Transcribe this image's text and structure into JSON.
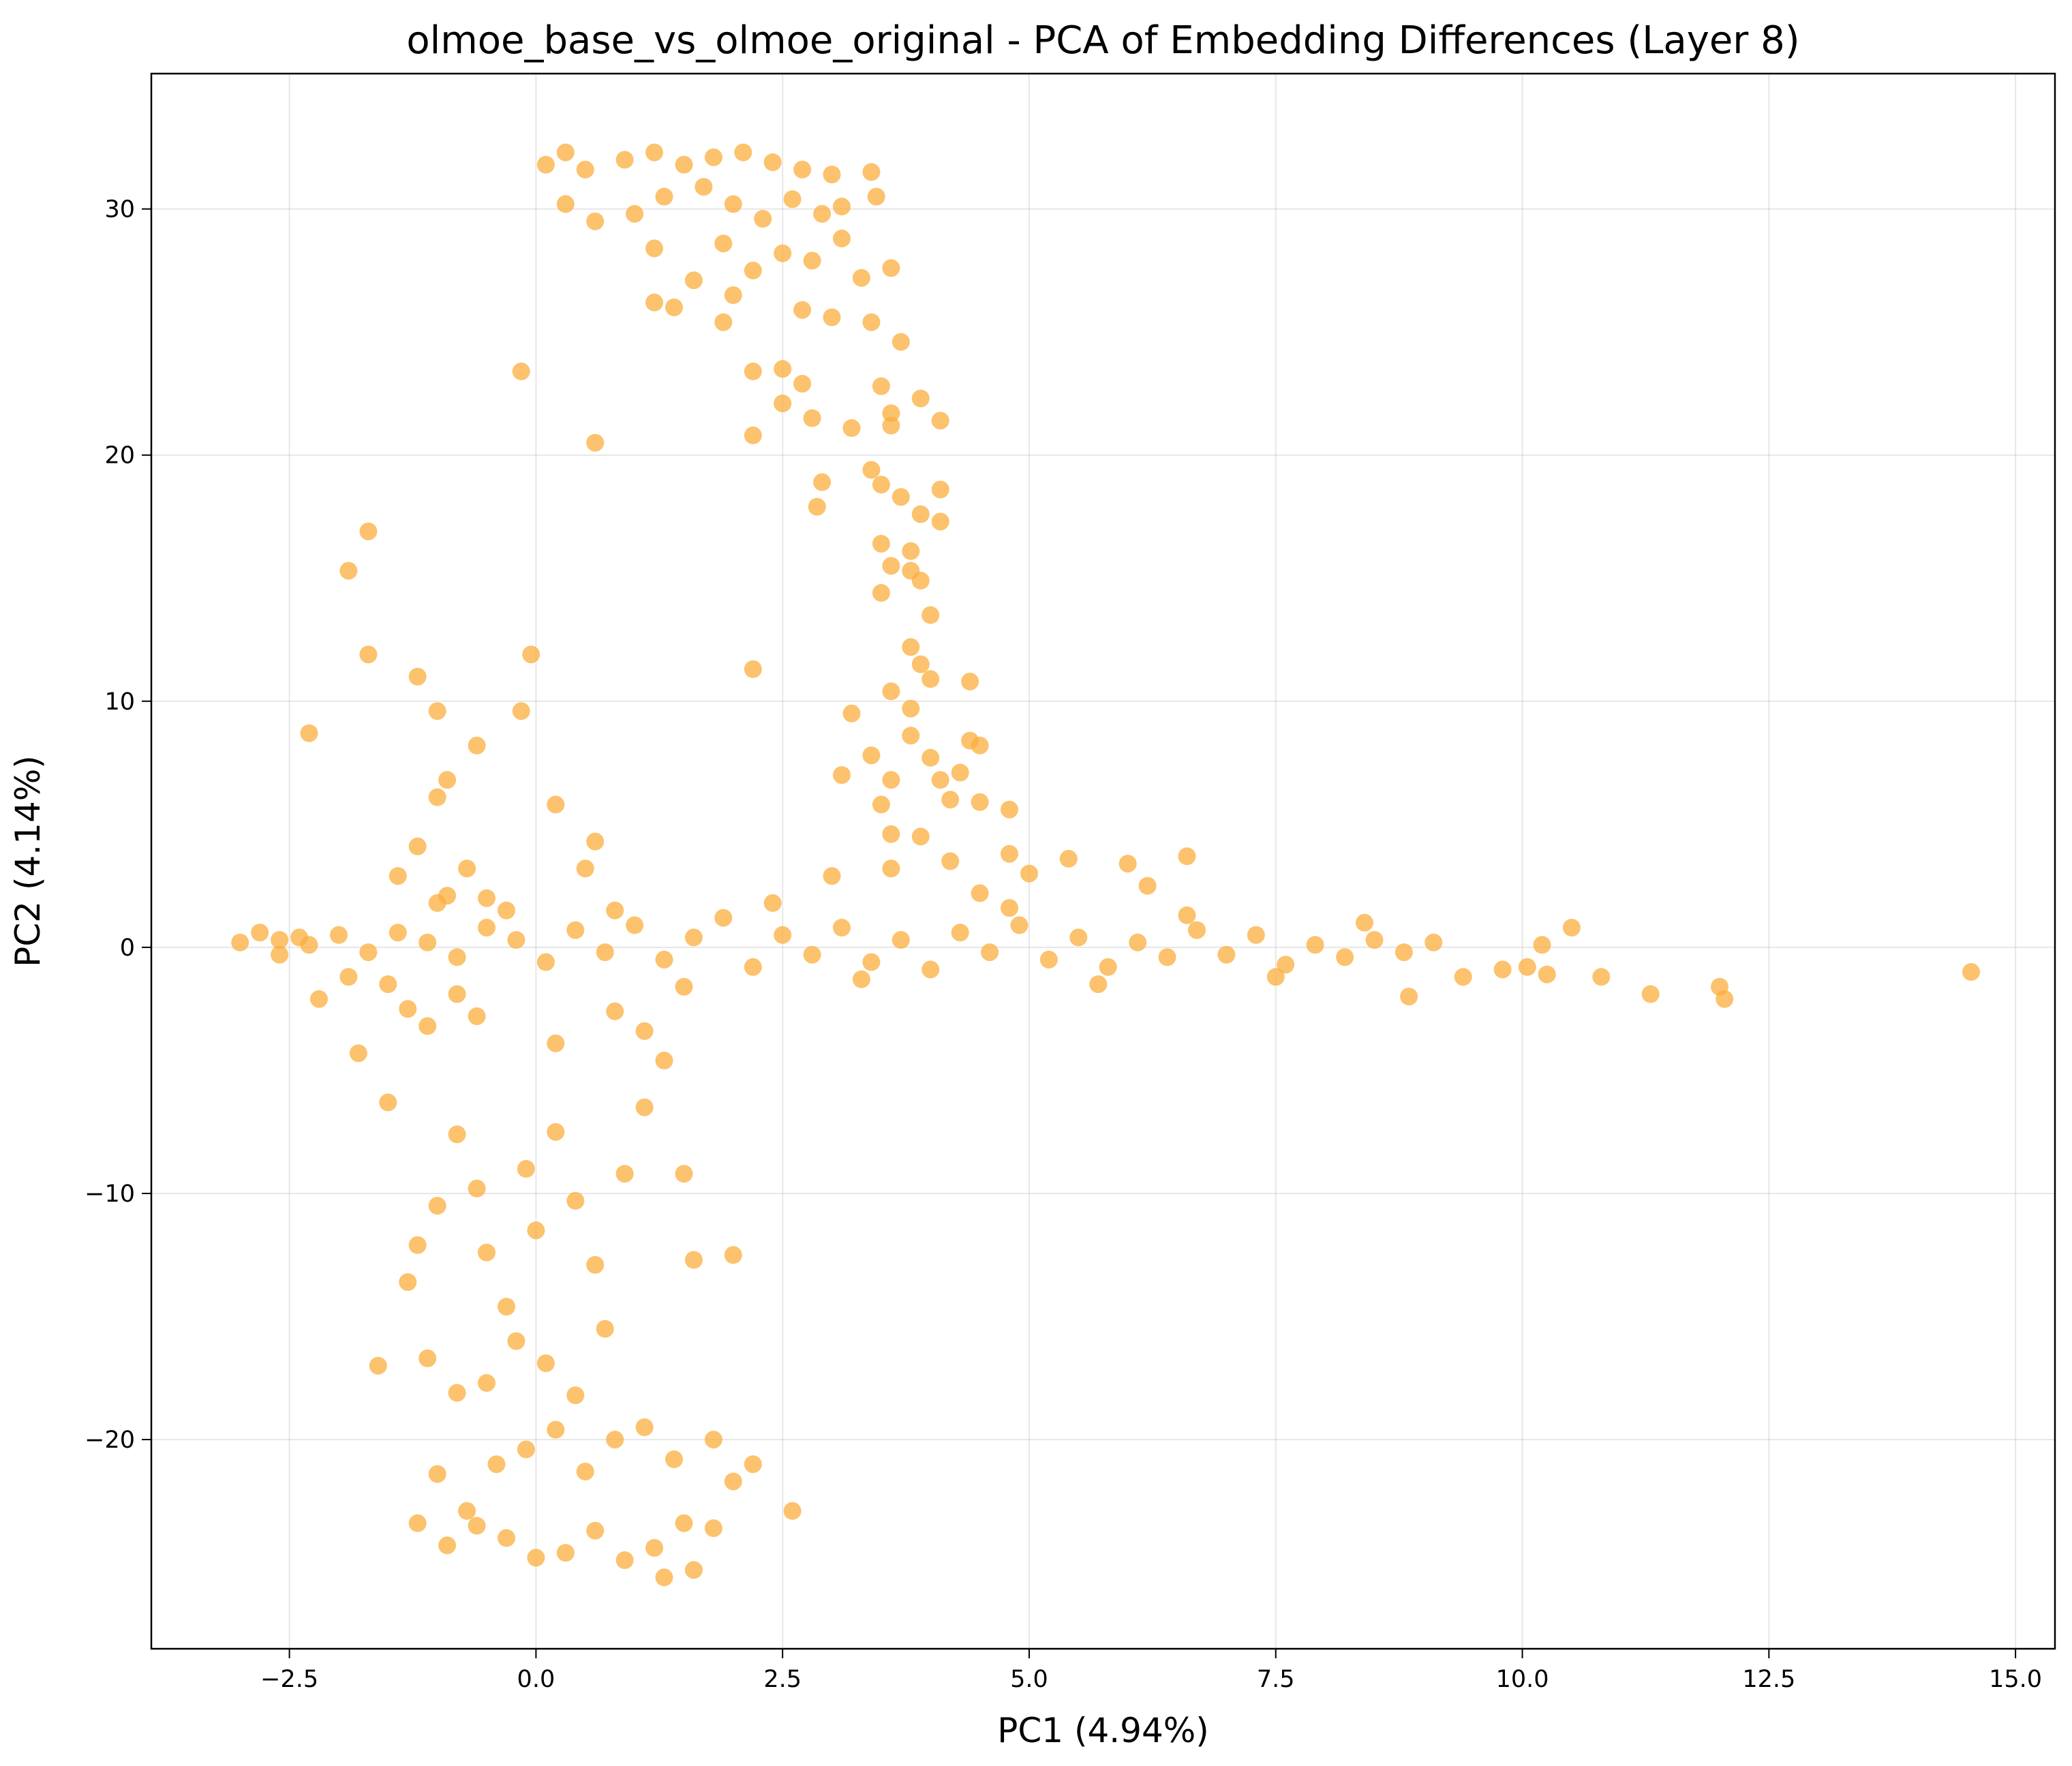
{
  "chart_data": {
    "type": "scatter",
    "title": "olmoe_base_vs_olmoe_original - PCA of Embedding Differences (Layer 8)",
    "xlabel": "PC1 (4.94%)",
    "ylabel": "PC2 (4.14%)",
    "xlim": [
      -3.9,
      15.4
    ],
    "ylim": [
      -28.5,
      35.5
    ],
    "xticks": [
      -2.5,
      0.0,
      2.5,
      5.0,
      7.5,
      10.0,
      12.5,
      15.0
    ],
    "xtick_labels": [
      "−2.5",
      "0.0",
      "2.5",
      "5.0",
      "7.5",
      "10.0",
      "12.5",
      "15.0"
    ],
    "yticks": [
      -20,
      -10,
      0,
      10,
      20,
      30
    ],
    "ytick_labels": [
      "−20",
      "−10",
      "0",
      "10",
      "20",
      "30"
    ],
    "grid": true,
    "marker_color": "#FBAE3C",
    "marker_alpha": 0.75,
    "points": [
      [
        -3.0,
        0.2
      ],
      [
        -2.8,
        0.6
      ],
      [
        -2.6,
        -0.3
      ],
      [
        -2.4,
        0.4
      ],
      [
        -2.3,
        8.7
      ],
      [
        -2.2,
        -2.1
      ],
      [
        -1.9,
        15.3
      ],
      [
        -1.8,
        -4.3
      ],
      [
        -1.7,
        16.9
      ],
      [
        -1.7,
        11.9
      ],
      [
        -1.5,
        -1.5
      ],
      [
        -1.4,
        2.9
      ],
      [
        -1.2,
        11.0
      ],
      [
        -1.2,
        4.1
      ],
      [
        -1.1,
        -3.2
      ],
      [
        -1.0,
        9.6
      ],
      [
        -1.0,
        6.1
      ],
      [
        -0.9,
        6.8
      ],
      [
        -0.9,
        2.1
      ],
      [
        -0.8,
        -1.9
      ],
      [
        -0.7,
        3.2
      ],
      [
        -0.6,
        8.2
      ],
      [
        -0.5,
        2.0
      ],
      [
        -0.3,
        1.5
      ],
      [
        -0.15,
        9.6
      ],
      [
        -0.05,
        11.9
      ],
      [
        -0.15,
        23.4
      ],
      [
        0.2,
        5.8
      ],
      [
        0.6,
        20.5
      ],
      [
        0.6,
        4.3
      ],
      [
        0.5,
        3.2
      ],
      [
        -1.5,
        -6.3
      ],
      [
        -1.2,
        -12.1
      ],
      [
        -1.3,
        -13.6
      ],
      [
        -1.6,
        -17.0
      ],
      [
        -1.0,
        -10.5
      ],
      [
        -0.8,
        -7.6
      ],
      [
        -0.6,
        -9.8
      ],
      [
        -0.5,
        -12.4
      ],
      [
        -0.3,
        -14.6
      ],
      [
        -0.1,
        -9.0
      ],
      [
        0.0,
        -11.5
      ],
      [
        0.2,
        -7.5
      ],
      [
        0.4,
        -10.3
      ],
      [
        0.6,
        -12.9
      ],
      [
        0.9,
        -9.2
      ],
      [
        1.1,
        -6.5
      ],
      [
        1.3,
        -4.6
      ],
      [
        1.5,
        -9.2
      ],
      [
        1.6,
        -12.7
      ],
      [
        2.0,
        -12.5
      ],
      [
        -1.1,
        -16.7
      ],
      [
        -0.8,
        -18.1
      ],
      [
        -0.5,
        -17.7
      ],
      [
        -0.2,
        -16.0
      ],
      [
        0.1,
        -16.9
      ],
      [
        0.4,
        -18.2
      ],
      [
        0.7,
        -15.5
      ],
      [
        -1.0,
        -21.4
      ],
      [
        -0.7,
        -22.9
      ],
      [
        -0.4,
        -21.0
      ],
      [
        -0.1,
        -20.4
      ],
      [
        0.2,
        -19.6
      ],
      [
        0.5,
        -21.3
      ],
      [
        0.8,
        -20.0
      ],
      [
        1.1,
        -19.5
      ],
      [
        1.4,
        -20.8
      ],
      [
        1.8,
        -20.0
      ],
      [
        2.0,
        -21.7
      ],
      [
        2.2,
        -21.0
      ],
      [
        -1.2,
        -23.4
      ],
      [
        -0.9,
        -24.3
      ],
      [
        -0.6,
        -23.5
      ],
      [
        -0.3,
        -24.0
      ],
      [
        0.0,
        -24.8
      ],
      [
        0.3,
        -24.6
      ],
      [
        0.6,
        -23.7
      ],
      [
        0.9,
        -24.9
      ],
      [
        1.2,
        -24.4
      ],
      [
        1.5,
        -23.4
      ],
      [
        1.3,
        -25.6
      ],
      [
        1.6,
        -25.3
      ],
      [
        1.8,
        -23.6
      ],
      [
        2.6,
        -22.9
      ],
      [
        0.1,
        31.8
      ],
      [
        0.3,
        32.3
      ],
      [
        0.5,
        31.6
      ],
      [
        0.9,
        32.0
      ],
      [
        1.2,
        32.3
      ],
      [
        1.5,
        31.8
      ],
      [
        1.8,
        32.1
      ],
      [
        2.1,
        32.3
      ],
      [
        2.4,
        31.9
      ],
      [
        2.7,
        31.6
      ],
      [
        3.0,
        31.4
      ],
      [
        3.4,
        31.5
      ],
      [
        3.45,
        30.5
      ],
      [
        0.3,
        30.2
      ],
      [
        0.6,
        29.5
      ],
      [
        1.0,
        29.8
      ],
      [
        1.3,
        30.5
      ],
      [
        1.7,
        30.9
      ],
      [
        2.0,
        30.2
      ],
      [
        2.3,
        29.6
      ],
      [
        2.6,
        30.4
      ],
      [
        2.9,
        29.8
      ],
      [
        3.1,
        30.1
      ],
      [
        1.2,
        28.4
      ],
      [
        1.6,
        27.1
      ],
      [
        1.9,
        28.6
      ],
      [
        2.2,
        27.5
      ],
      [
        2.5,
        28.2
      ],
      [
        2.8,
        27.9
      ],
      [
        3.1,
        28.8
      ],
      [
        3.3,
        27.2
      ],
      [
        3.6,
        27.6
      ],
      [
        1.2,
        26.2
      ],
      [
        1.4,
        26.0
      ],
      [
        2.0,
        26.5
      ],
      [
        2.7,
        25.9
      ],
      [
        3.0,
        25.6
      ],
      [
        3.4,
        25.4
      ],
      [
        3.7,
        24.6
      ],
      [
        1.9,
        25.4
      ],
      [
        2.5,
        23.5
      ],
      [
        2.7,
        22.9
      ],
      [
        2.5,
        22.1
      ],
      [
        3.5,
        22.8
      ],
      [
        3.6,
        21.7
      ],
      [
        3.9,
        22.3
      ],
      [
        2.8,
        21.5
      ],
      [
        3.2,
        21.1
      ],
      [
        3.6,
        21.2
      ],
      [
        4.1,
        21.4
      ],
      [
        2.2,
        23.4
      ],
      [
        2.2,
        20.8
      ],
      [
        3.4,
        19.4
      ],
      [
        3.5,
        18.8
      ],
      [
        3.7,
        18.3
      ],
      [
        4.1,
        18.6
      ],
      [
        2.9,
        18.9
      ],
      [
        2.85,
        17.9
      ],
      [
        3.9,
        17.6
      ],
      [
        4.1,
        17.3
      ],
      [
        3.5,
        16.4
      ],
      [
        3.8,
        16.1
      ],
      [
        3.6,
        15.5
      ],
      [
        3.8,
        15.3
      ],
      [
        3.9,
        14.9
      ],
      [
        4.0,
        13.5
      ],
      [
        3.5,
        14.4
      ],
      [
        3.8,
        12.2
      ],
      [
        3.9,
        11.5
      ],
      [
        4.0,
        10.9
      ],
      [
        3.6,
        10.4
      ],
      [
        3.8,
        9.7
      ],
      [
        4.4,
        10.8
      ],
      [
        3.2,
        9.5
      ],
      [
        2.2,
        11.3
      ],
      [
        3.8,
        8.6
      ],
      [
        4.0,
        7.7
      ],
      [
        4.1,
        6.8
      ],
      [
        3.4,
        7.8
      ],
      [
        3.1,
        7.0
      ],
      [
        3.6,
        6.8
      ],
      [
        3.5,
        5.8
      ],
      [
        3.6,
        4.6
      ],
      [
        3.9,
        4.5
      ],
      [
        4.2,
        6.0
      ],
      [
        4.5,
        5.9
      ],
      [
        4.8,
        5.6
      ],
      [
        4.4,
        8.4
      ],
      [
        4.5,
        8.2
      ],
      [
        4.3,
        7.1
      ],
      [
        -2.6,
        0.3
      ],
      [
        -2.3,
        0.1
      ],
      [
        -2.0,
        0.5
      ],
      [
        -1.7,
        -0.2
      ],
      [
        -1.4,
        0.6
      ],
      [
        -1.1,
        0.2
      ],
      [
        -0.8,
        -0.4
      ],
      [
        -0.5,
        0.8
      ],
      [
        -0.2,
        0.3
      ],
      [
        0.1,
        -0.6
      ],
      [
        0.4,
        0.7
      ],
      [
        0.7,
        -0.2
      ],
      [
        1.0,
        0.9
      ],
      [
        1.3,
        -0.5
      ],
      [
        1.6,
        0.4
      ],
      [
        1.9,
        1.2
      ],
      [
        2.2,
        -0.8
      ],
      [
        2.5,
        0.5
      ],
      [
        2.8,
        -0.3
      ],
      [
        3.1,
        0.8
      ],
      [
        3.4,
        -0.6
      ],
      [
        3.7,
        0.3
      ],
      [
        4.0,
        -0.9
      ],
      [
        4.3,
        0.6
      ],
      [
        4.6,
        -0.2
      ],
      [
        4.9,
        0.9
      ],
      [
        5.2,
        -0.5
      ],
      [
        5.5,
        0.4
      ],
      [
        5.8,
        -0.8
      ],
      [
        6.1,
        0.2
      ],
      [
        6.4,
        -0.4
      ],
      [
        6.7,
        0.7
      ],
      [
        7.0,
        -0.3
      ],
      [
        7.3,
        0.5
      ],
      [
        7.6,
        -0.7
      ],
      [
        7.9,
        0.1
      ],
      [
        8.2,
        -0.4
      ],
      [
        8.5,
        0.3
      ],
      [
        8.8,
        -0.2
      ],
      [
        9.1,
        0.2
      ],
      [
        -1.9,
        -1.2
      ],
      [
        -1.0,
        1.8
      ],
      [
        0.8,
        1.5
      ],
      [
        1.5,
        -1.6
      ],
      [
        2.4,
        1.8
      ],
      [
        3.3,
        -1.3
      ],
      [
        4.8,
        1.6
      ],
      [
        5.7,
        -1.5
      ],
      [
        6.6,
        1.3
      ],
      [
        7.5,
        -1.2
      ],
      [
        8.4,
        1.0
      ],
      [
        -0.6,
        -2.8
      ],
      [
        0.2,
        -3.9
      ],
      [
        0.8,
        -2.6
      ],
      [
        -1.3,
        -2.5
      ],
      [
        1.1,
        -3.4
      ],
      [
        3.0,
        2.9
      ],
      [
        3.6,
        3.2
      ],
      [
        4.2,
        3.5
      ],
      [
        4.8,
        3.8
      ],
      [
        5.4,
        3.6
      ],
      [
        6.0,
        3.4
      ],
      [
        6.6,
        3.7
      ],
      [
        6.2,
        2.5
      ],
      [
        5.0,
        3.0
      ],
      [
        4.5,
        2.2
      ],
      [
        9.4,
        -1.2
      ],
      [
        9.8,
        -0.9
      ],
      [
        10.05,
        -0.8
      ],
      [
        10.2,
        0.1
      ],
      [
        10.25,
        -1.1
      ],
      [
        10.5,
        0.8
      ],
      [
        10.8,
        -1.2
      ],
      [
        8.85,
        -2.0
      ],
      [
        11.3,
        -1.9
      ],
      [
        12.0,
        -1.6
      ],
      [
        12.05,
        -2.1
      ],
      [
        14.55,
        -1.0
      ]
    ]
  }
}
